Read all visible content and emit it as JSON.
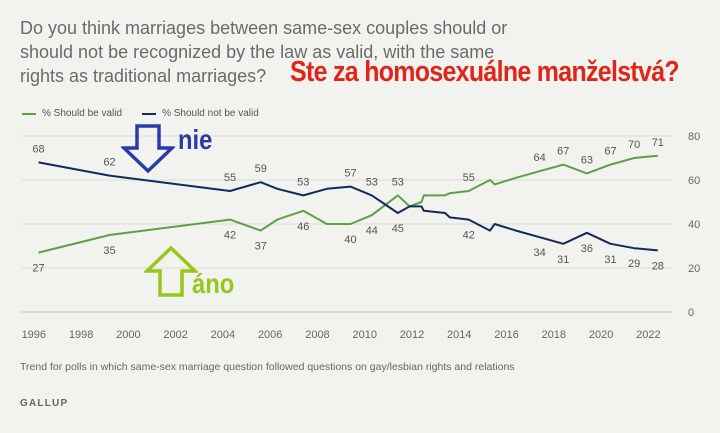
{
  "question": "Do you think marriages between same-sex couples should or\nshould not be recognized by the law as valid, with the same\nrights as traditional marriages?",
  "overlay_title": "Ste za homosexuálne manželstvá?",
  "annotations": {
    "nie": "nie",
    "ano": "áno"
  },
  "footnote": "Trend for polls in which same-sex marriage question followed questions on gay/lesbian rights and relations",
  "source": "GALLUP",
  "colors": {
    "valid": "#5ca244",
    "not_valid": "#14295e",
    "nie_arrow": "#2b3aa5",
    "ano_arrow": "#95c81a",
    "overlay_title": "#e0261b"
  },
  "chart_data": {
    "type": "line",
    "xlim": [
      1995.5,
      2023
    ],
    "ylim": [
      0,
      80
    ],
    "x_ticks": [
      1996,
      1998,
      2000,
      2002,
      2004,
      2006,
      2008,
      2010,
      2012,
      2014,
      2016,
      2018,
      2020,
      2022
    ],
    "y_ticks": [
      0,
      20,
      40,
      60,
      80
    ],
    "legend_position": "top-left",
    "grid": true,
    "series": [
      {
        "name": "% Should be valid",
        "color": "#5ca244",
        "points": [
          [
            1996.2,
            27
          ],
          [
            1999.2,
            35
          ],
          [
            2004.3,
            42
          ],
          [
            2005.6,
            37
          ],
          [
            2006.3,
            42
          ],
          [
            2007.4,
            46
          ],
          [
            2008.4,
            40
          ],
          [
            2009.4,
            40
          ],
          [
            2010.3,
            44
          ],
          [
            2011.4,
            53
          ],
          [
            2011.9,
            48
          ],
          [
            2012.4,
            50
          ],
          [
            2012.5,
            53
          ],
          [
            2013.4,
            53
          ],
          [
            2013.6,
            54
          ],
          [
            2014.4,
            55
          ],
          [
            2015.3,
            60
          ],
          [
            2015.5,
            58
          ],
          [
            2016.4,
            61
          ],
          [
            2017.4,
            64
          ],
          [
            2018.4,
            67
          ],
          [
            2019.4,
            63
          ],
          [
            2020.4,
            67
          ],
          [
            2021.4,
            70
          ],
          [
            2022.4,
            71
          ]
        ],
        "labels": [
          [
            1996.2,
            27,
            "below"
          ],
          [
            1999.2,
            35,
            "below"
          ],
          [
            2004.3,
            42,
            "below"
          ],
          [
            2005.6,
            37,
            "below"
          ],
          [
            2007.4,
            46,
            "below"
          ],
          [
            2009.4,
            40,
            "below"
          ],
          [
            2010.3,
            44,
            "below"
          ],
          [
            2011.4,
            53,
            "above"
          ],
          [
            2014.4,
            55,
            "above"
          ],
          [
            2017.4,
            64,
            "above"
          ],
          [
            2018.4,
            67,
            "above"
          ],
          [
            2019.4,
            63,
            "above"
          ],
          [
            2020.4,
            67,
            "above"
          ],
          [
            2021.4,
            70,
            "above"
          ],
          [
            2022.4,
            71,
            "above"
          ]
        ]
      },
      {
        "name": "% Should not be valid",
        "color": "#14295e",
        "points": [
          [
            1996.2,
            68
          ],
          [
            1999.2,
            62
          ],
          [
            2004.3,
            55
          ],
          [
            2005.6,
            59
          ],
          [
            2006.3,
            56
          ],
          [
            2007.4,
            53
          ],
          [
            2008.4,
            56
          ],
          [
            2009.4,
            57
          ],
          [
            2010.3,
            53
          ],
          [
            2011.4,
            45
          ],
          [
            2011.9,
            48
          ],
          [
            2012.4,
            48
          ],
          [
            2012.5,
            46
          ],
          [
            2013.4,
            45
          ],
          [
            2013.6,
            43
          ],
          [
            2014.4,
            42
          ],
          [
            2015.3,
            37
          ],
          [
            2015.5,
            40
          ],
          [
            2016.4,
            37
          ],
          [
            2017.4,
            34
          ],
          [
            2018.4,
            31
          ],
          [
            2019.4,
            36
          ],
          [
            2020.4,
            31
          ],
          [
            2021.4,
            29
          ],
          [
            2022.4,
            28
          ]
        ],
        "labels": [
          [
            1996.2,
            68,
            "above"
          ],
          [
            1999.2,
            62,
            "above"
          ],
          [
            2004.3,
            55,
            "above"
          ],
          [
            2005.6,
            59,
            "above"
          ],
          [
            2007.4,
            53,
            "above"
          ],
          [
            2009.4,
            57,
            "above"
          ],
          [
            2010.3,
            53,
            "above"
          ],
          [
            2011.4,
            45,
            "below"
          ],
          [
            2014.4,
            42,
            "below"
          ],
          [
            2017.4,
            34,
            "below"
          ],
          [
            2018.4,
            31,
            "below"
          ],
          [
            2019.4,
            36,
            "below"
          ],
          [
            2020.4,
            31,
            "below"
          ],
          [
            2021.4,
            29,
            "below"
          ],
          [
            2022.4,
            28,
            "below"
          ]
        ]
      }
    ]
  }
}
